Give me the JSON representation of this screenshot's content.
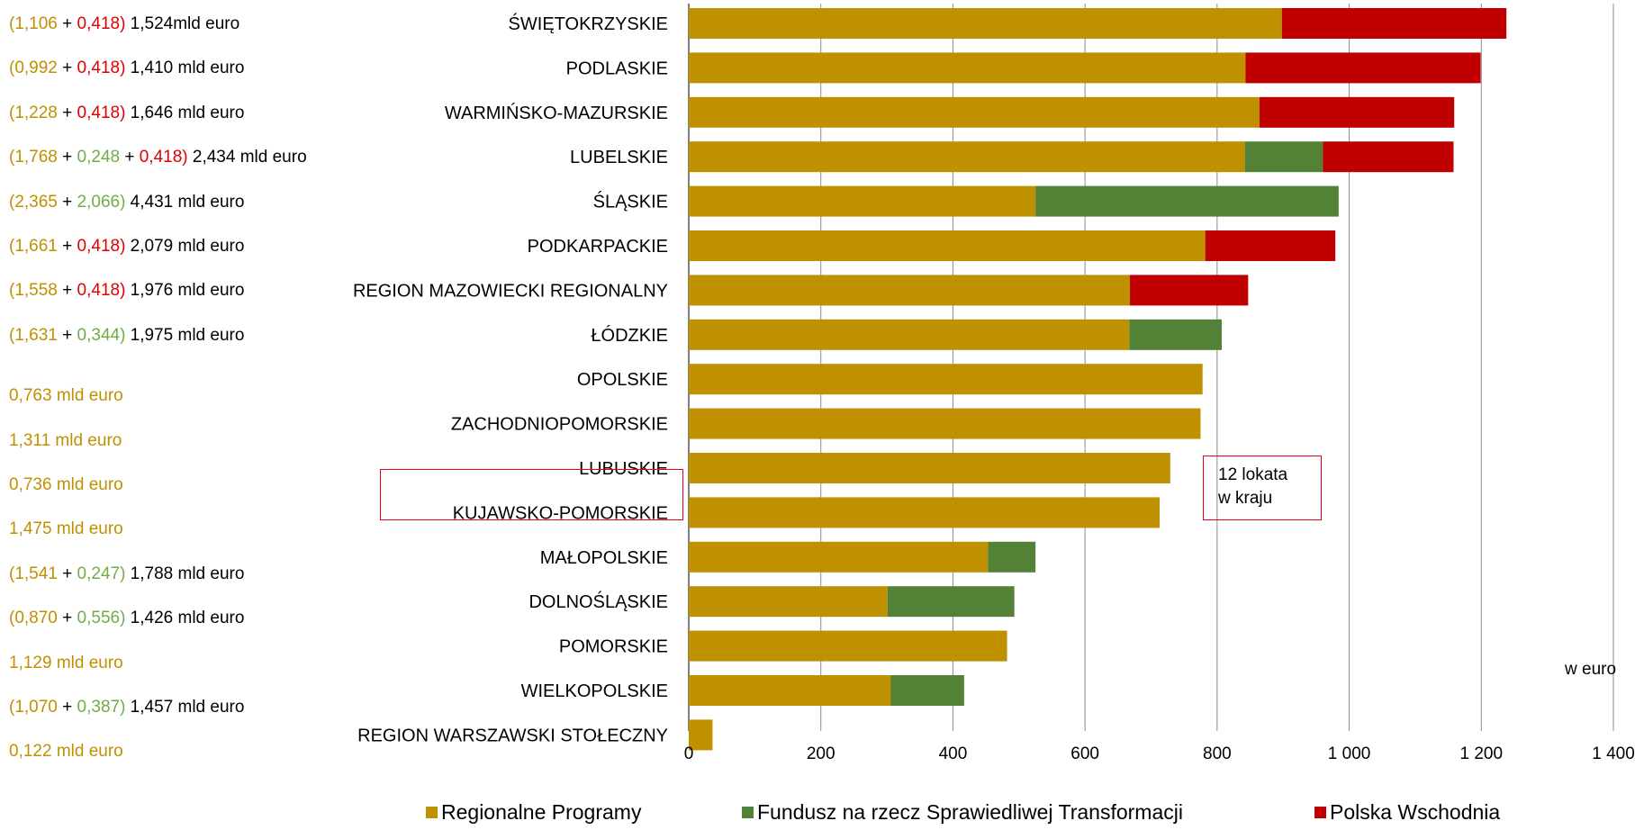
{
  "chart_data": {
    "type": "bar",
    "orientation": "horizontal",
    "stacked": true,
    "categories": [
      "ŚWIĘTOKRZYSKIE",
      "PODLASKIE",
      "WARMIŃSKO-MAZURSKIE",
      "LUBELSKIE",
      "ŚLĄSKIE",
      "PODKARPACKIE",
      "REGION MAZOWIECKI REGIONALNY",
      "ŁÓDZKIE",
      "OPOLSKIE",
      "ZACHODNIOPOMORSKIE",
      "LUBUSKIE",
      "KUJAWSKO-POMORSKIE",
      "MAŁOPOLSKIE",
      "DOLNOŚLĄSKIE",
      "POMORSKIE",
      "WIELKOPOLSKIE",
      "REGION WARSZAWSKI STOŁECZNY"
    ],
    "series": [
      {
        "name": "Regionalne Programy",
        "color": "#bf9000",
        "values": [
          898,
          843,
          864,
          842,
          525,
          782,
          668,
          667,
          778,
          775,
          729,
          713,
          453,
          301,
          482,
          306,
          36
        ]
      },
      {
        "name": "Fundusz na rzecz Sprawiedliwej Transformacji",
        "color": "#538135",
        "values": [
          0,
          0,
          0,
          118,
          459,
          0,
          0,
          140,
          0,
          0,
          0,
          0,
          72,
          192,
          0,
          111,
          0
        ]
      },
      {
        "name": "Polska Wschodnia",
        "color": "#c00000",
        "values": [
          340,
          356,
          295,
          198,
          0,
          197,
          179,
          0,
          0,
          0,
          0,
          0,
          0,
          0,
          0,
          0,
          0
        ]
      }
    ],
    "xlim": [
      0,
      1400
    ],
    "x_ticks": [
      "0",
      "200",
      "400",
      "600",
      "800",
      "1 000",
      "1 200",
      "1 400"
    ],
    "x_tick_values": [
      0,
      200,
      400,
      600,
      800,
      1000,
      1200,
      1400
    ],
    "unit_label": "w euro",
    "grid": "vertical",
    "legend_position": "bottom",
    "highlight_category": "KUJAWSKO-POMORSKIE",
    "annotation": {
      "line1": "12 lokata",
      "line2": "w kraju"
    },
    "side_notes": [
      [
        {
          "t": "(1,106",
          "c": "rp"
        },
        {
          "t": " + ",
          "c": "tot"
        },
        {
          "t": "0,418)",
          "c": "pw"
        },
        {
          "t": " 1,524mld euro",
          "c": "tot"
        }
      ],
      [
        {
          "t": "(0,992",
          "c": "rp"
        },
        {
          "t": " + ",
          "c": "tot"
        },
        {
          "t": "0,418)",
          "c": "pw"
        },
        {
          "t": " 1,410 mld euro",
          "c": "tot"
        }
      ],
      [
        {
          "t": "(1,228",
          "c": "rp"
        },
        {
          "t": " + ",
          "c": "tot"
        },
        {
          "t": "0,418)",
          "c": "pw"
        },
        {
          "t": " 1,646 mld euro",
          "c": "tot"
        }
      ],
      [
        {
          "t": "(1,768",
          "c": "rp"
        },
        {
          "t": " + ",
          "c": "tot"
        },
        {
          "t": "0,248",
          "c": "fst"
        },
        {
          "t": " + ",
          "c": "tot"
        },
        {
          "t": "0,418)",
          "c": "pw"
        },
        {
          "t": " 2,434 mld euro",
          "c": "tot"
        }
      ],
      [
        {
          "t": "(2,365",
          "c": "rp"
        },
        {
          "t": " + ",
          "c": "tot"
        },
        {
          "t": "2,066)",
          "c": "fst"
        },
        {
          "t": " 4,431 mld euro",
          "c": "tot"
        }
      ],
      [
        {
          "t": "(1,661",
          "c": "rp"
        },
        {
          "t": " + ",
          "c": "tot"
        },
        {
          "t": "0,418)",
          "c": "pw"
        },
        {
          "t": " 2,079 mld euro",
          "c": "tot"
        }
      ],
      [
        {
          "t": "(1,558",
          "c": "rp"
        },
        {
          "t": " + ",
          "c": "tot"
        },
        {
          "t": "0,418)",
          "c": "pw"
        },
        {
          "t": " 1,976 mld euro",
          "c": "tot"
        }
      ],
      [
        {
          "t": "(1,631",
          "c": "rp"
        },
        {
          "t": " + ",
          "c": "tot"
        },
        {
          "t": "0,344)",
          "c": "fst"
        },
        {
          "t": " 1,975 mld euro",
          "c": "tot"
        }
      ],
      [
        {
          "t": "0,763 mld euro",
          "c": "rp"
        }
      ],
      [
        {
          "t": "1,311 mld euro",
          "c": "rp"
        }
      ],
      [
        {
          "t": "0,736 mld euro",
          "c": "rp"
        }
      ],
      [
        {
          "t": "1,475 mld euro",
          "c": "rp"
        }
      ],
      [
        {
          "t": "(1,541",
          "c": "rp"
        },
        {
          "t": " + ",
          "c": "tot"
        },
        {
          "t": "0,247)",
          "c": "fst"
        },
        {
          "t": " 1,788 mld euro",
          "c": "tot"
        }
      ],
      [
        {
          "t": "(0,870",
          "c": "rp"
        },
        {
          "t": " + ",
          "c": "tot"
        },
        {
          "t": "0,556)",
          "c": "fst"
        },
        {
          "t": " 1,426 mld euro",
          "c": "tot"
        }
      ],
      [
        {
          "t": "1,129 mld euro",
          "c": "rp"
        }
      ],
      [
        {
          "t": "(1,070",
          "c": "rp"
        },
        {
          "t": " + ",
          "c": "tot"
        },
        {
          "t": "0,387)",
          "c": "fst"
        },
        {
          "t": " 1,457 mld euro",
          "c": "tot"
        }
      ],
      [
        {
          "t": "0,122 mld euro",
          "c": "rp"
        }
      ]
    ]
  }
}
